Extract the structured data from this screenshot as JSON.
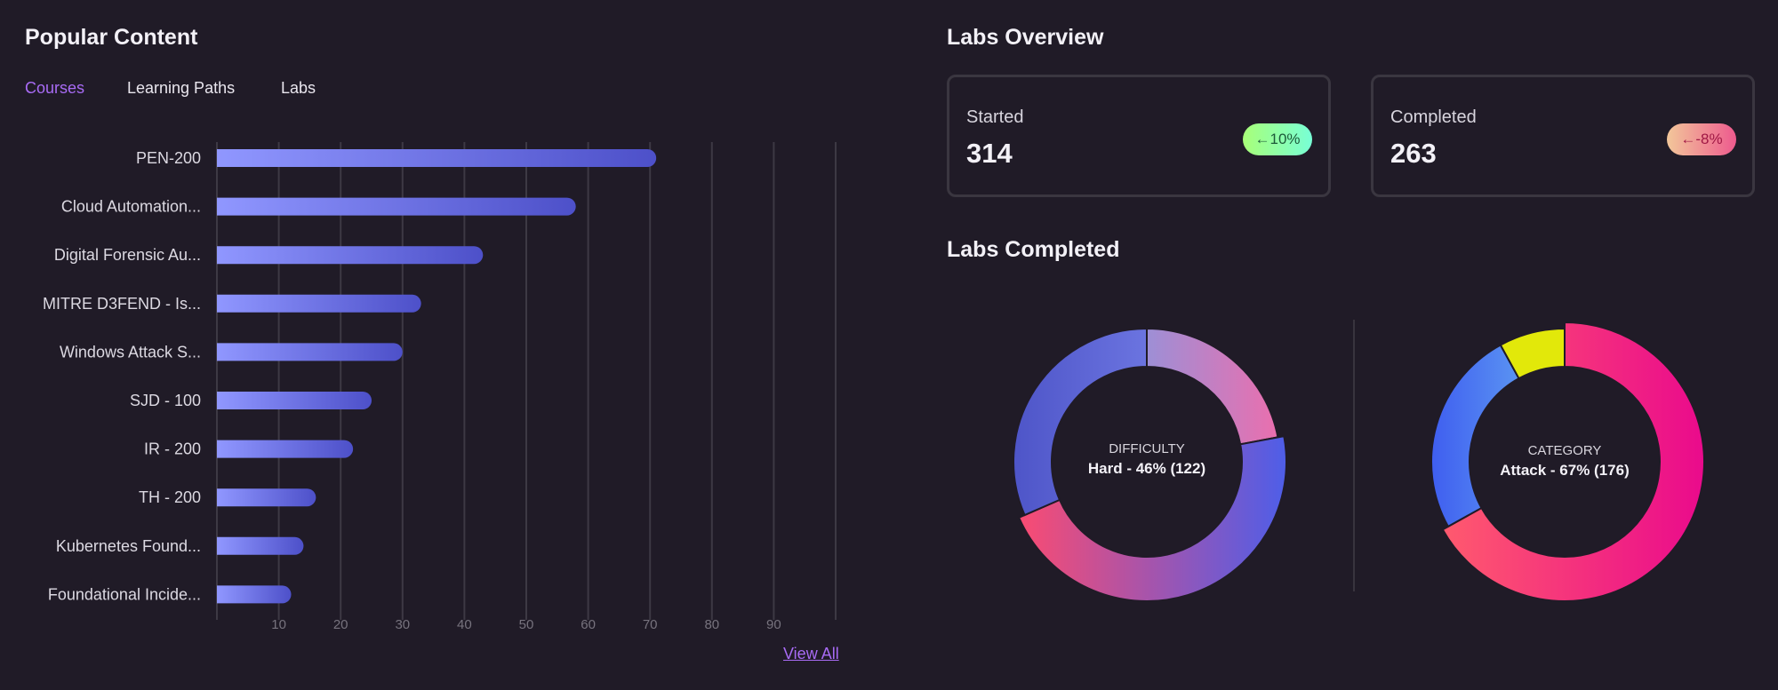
{
  "popular": {
    "title": "Popular Content",
    "tabs": [
      {
        "label": "Courses",
        "active": true
      },
      {
        "label": "Learning Paths",
        "active": false
      },
      {
        "label": "Labs",
        "active": false
      }
    ],
    "view_all": "View All"
  },
  "labs_overview": {
    "title": "Labs Overview",
    "cards": [
      {
        "label": "Started",
        "value": "314",
        "badge": "←10%",
        "trend": "up"
      },
      {
        "label": "Completed",
        "value": "263",
        "badge": "←-8%",
        "trend": "down"
      }
    ]
  },
  "labs_completed": {
    "title": "Labs Completed"
  },
  "chart_data": [
    {
      "type": "bar",
      "orientation": "horizontal",
      "categories": [
        "PEN-200",
        "Cloud Automation...",
        "Digital Forensic Au...",
        "MITRE D3FEND - Is...",
        "Windows Attack S...",
        "SJD - 100",
        "IR - 200",
        "TH - 200",
        "Kubernetes Found...",
        "Foundational Incide..."
      ],
      "values": [
        71,
        58,
        43,
        33,
        30,
        25,
        22,
        16,
        14,
        12
      ],
      "xlim": [
        0,
        100
      ],
      "xticks": [
        10,
        20,
        30,
        40,
        50,
        60,
        70,
        80,
        90
      ],
      "grid": true,
      "colors": {
        "bar_start": "#9097ff",
        "bar_end": "#4d50c9"
      }
    },
    {
      "type": "pie",
      "donut": true,
      "center_title": "DIFFICULTY",
      "center_label": "Hard - 46% (122)",
      "slices": [
        {
          "value": 58,
          "colors": [
            "#9d8fd6",
            "#ea6fae"
          ]
        },
        {
          "value": 122,
          "active": true,
          "colors": [
            "#fa4b72",
            "#4e5ee8"
          ]
        },
        {
          "value": 83,
          "colors": [
            "#4e55c8",
            "#6b74e0"
          ]
        }
      ]
    },
    {
      "type": "pie",
      "donut": true,
      "center_title": "CATEGORY",
      "center_label": "Attack - 67% (176)",
      "slices": [
        {
          "value": 176,
          "active": true,
          "colors": [
            "#ff5a6e",
            "#ea0a8c"
          ]
        },
        {
          "value": 66,
          "colors": [
            "#3f5ef0",
            "#5a93f2"
          ]
        },
        {
          "value": 21,
          "colors": [
            "#e2e80a",
            "#e2e80a"
          ]
        }
      ]
    }
  ]
}
